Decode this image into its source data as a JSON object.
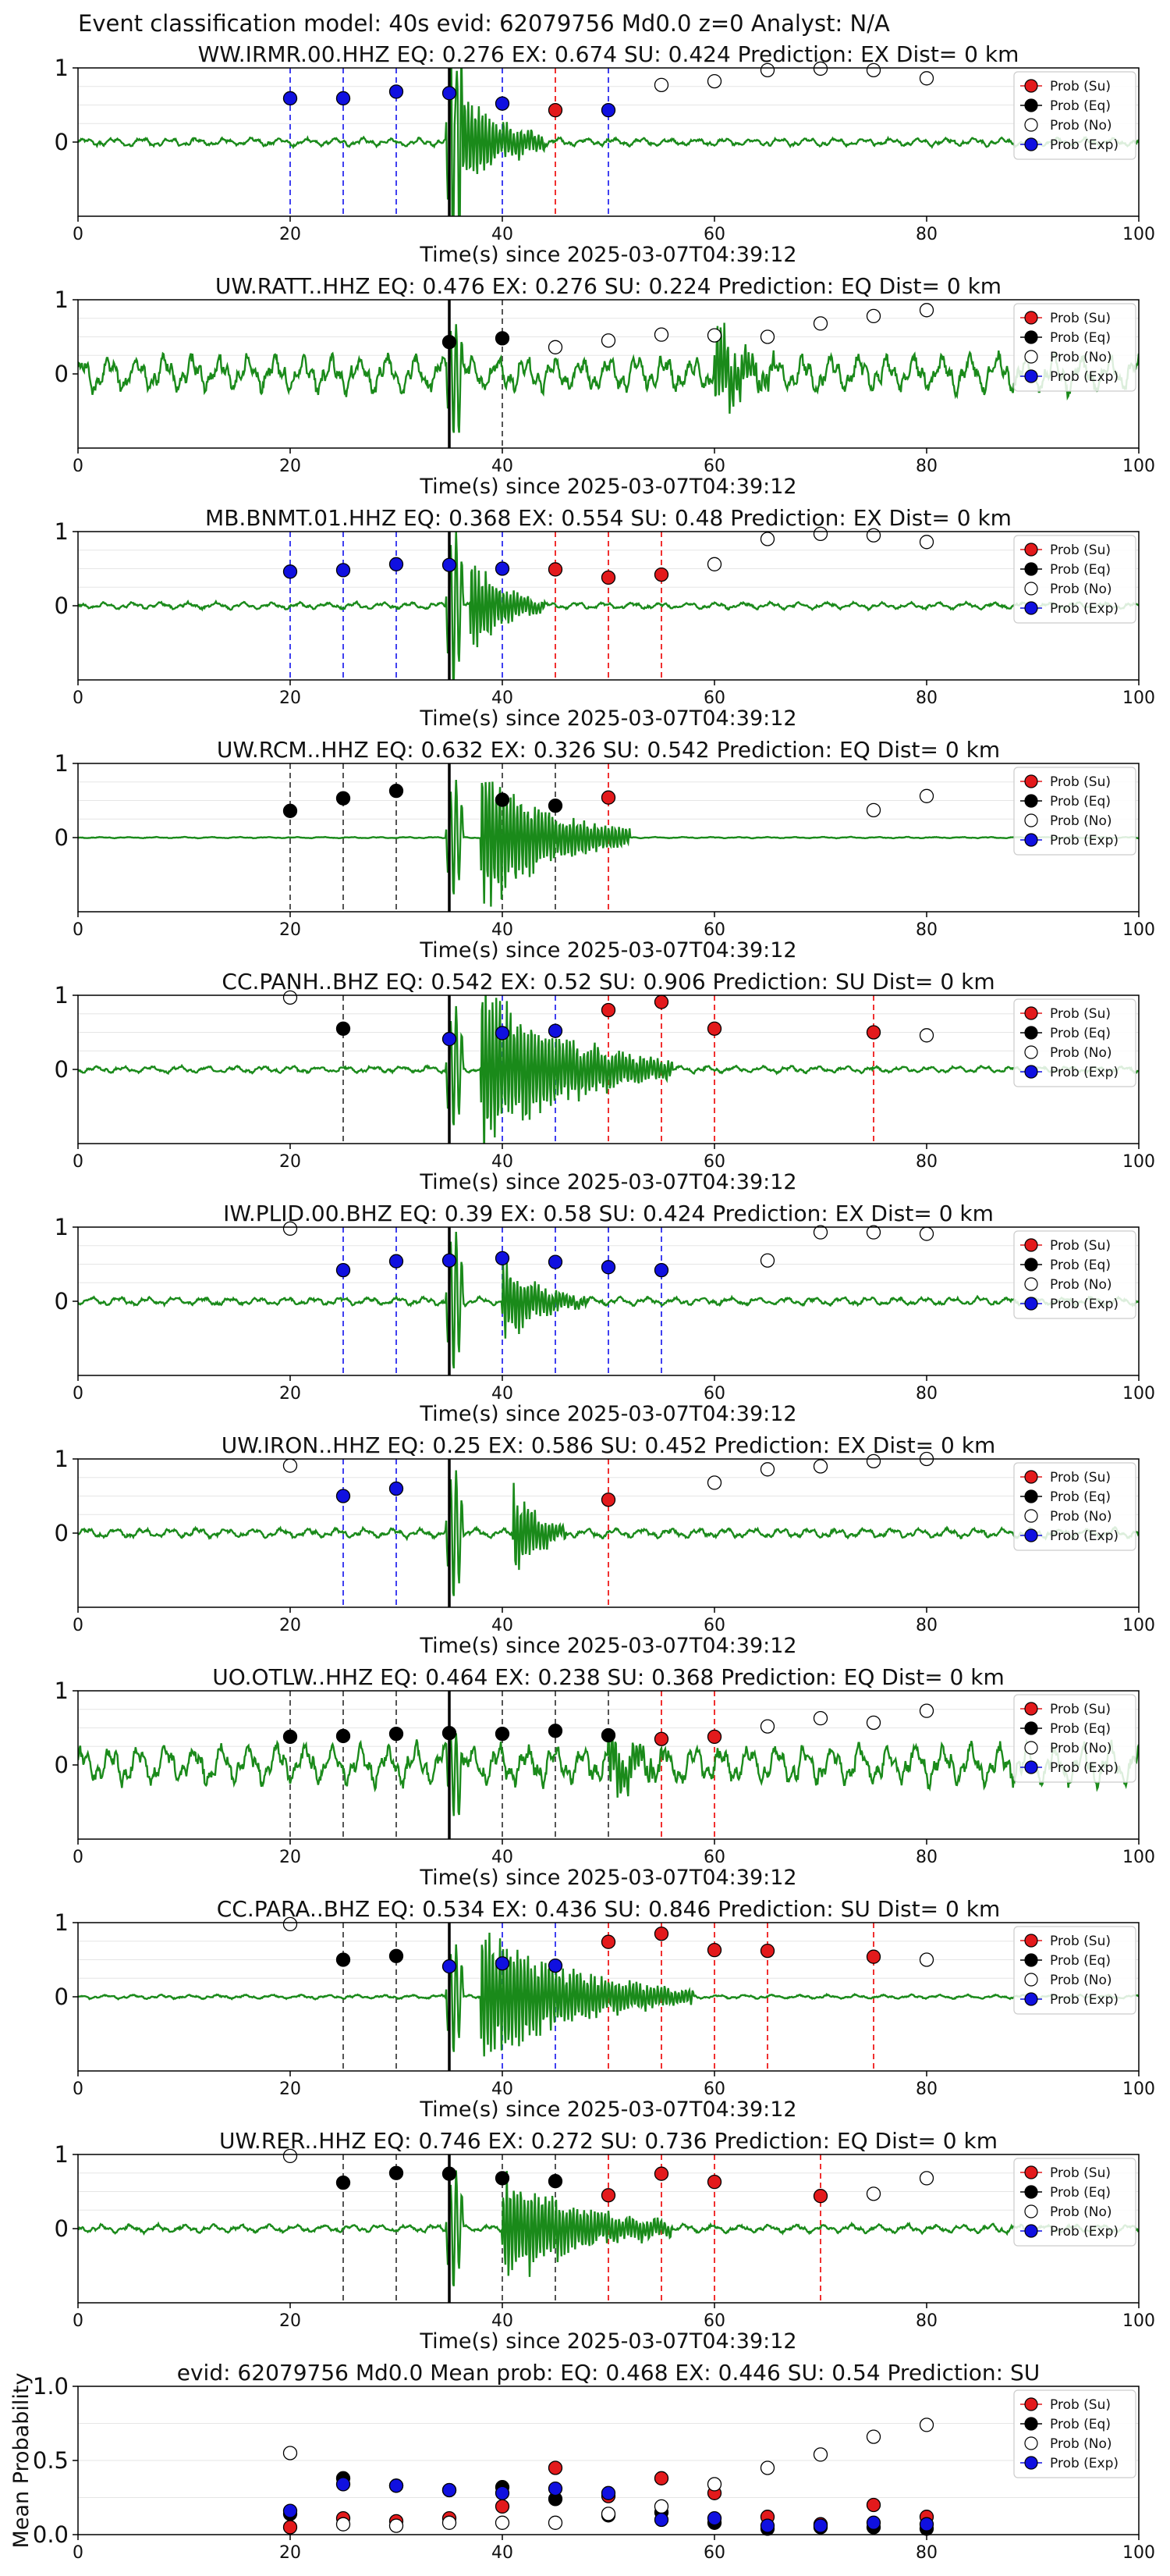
{
  "figure": {
    "suptitle": "Event classification model: 40s evid: 62079756 Md0.0 z=0 Analyst: N/A",
    "xlabel": "Time(s) since 2025-03-07T04:39:12",
    "legend": [
      "Prob (Su)",
      "Prob (Eq)",
      "Prob (No)",
      "Prob (Exp)"
    ],
    "colors": {
      "su": "#e31a1c",
      "eq": "#000000",
      "no": "#ffffff",
      "exp": "#1010e0",
      "wave": "#1a8a1a"
    }
  },
  "chart_data": [
    {
      "type": "scatter",
      "title": "WW.IRMR.00.HHZ   EQ: 0.276  EX: 0.674  SU: 0.424   Prediction: EX    Dist= 0 km",
      "xlim": [
        0,
        100
      ],
      "ylim": [
        -1,
        1
      ],
      "xticks": [
        "0",
        "20",
        "40",
        "60",
        "80",
        "100"
      ],
      "yticks": [
        "0",
        "1"
      ],
      "pick": 35,
      "amp": 1.6,
      "noise": 0.06,
      "burst": [
        35,
        44
      ],
      "burst_amp": 0.8,
      "windows": [
        20,
        25,
        30,
        35,
        40,
        45,
        50
      ],
      "series": [
        {
          "key": "exp",
          "x": [
            20,
            25,
            30,
            35,
            40,
            50
          ],
          "y": [
            0.59,
            0.59,
            0.68,
            0.66,
            0.52,
            0.43
          ]
        },
        {
          "key": "su",
          "x": [
            45
          ],
          "y": [
            0.43
          ]
        },
        {
          "key": "no",
          "x": [
            55,
            60,
            65,
            70,
            75,
            80
          ],
          "y": [
            0.77,
            0.82,
            0.97,
            0.99,
            0.97,
            0.86
          ]
        }
      ]
    },
    {
      "type": "scatter",
      "title": "UW.RATT..HHZ   EQ: 0.476  EX: 0.276  SU: 0.224   Prediction: EQ    Dist= 0 km",
      "xlim": [
        0,
        100
      ],
      "ylim": [
        -1,
        1
      ],
      "xticks": [
        "0",
        "20",
        "40",
        "60",
        "80",
        "100"
      ],
      "yticks": [
        "0",
        "1"
      ],
      "pick": 35,
      "amp": 0.9,
      "noise": 0.28,
      "burst": [
        60,
        66
      ],
      "burst_amp": 0.6,
      "windows": [
        35,
        40
      ],
      "series": [
        {
          "key": "eq",
          "x": [
            35,
            40
          ],
          "y": [
            0.43,
            0.48
          ]
        },
        {
          "key": "no",
          "x": [
            45,
            50,
            55,
            60,
            65,
            70,
            75,
            80
          ],
          "y": [
            0.36,
            0.45,
            0.53,
            0.52,
            0.5,
            0.68,
            0.78,
            0.86
          ]
        }
      ]
    },
    {
      "type": "scatter",
      "title": "MB.BNMT.01.HHZ   EQ: 0.368  EX: 0.554  SU: 0.48   Prediction: EX    Dist= 0 km",
      "xlim": [
        0,
        100
      ],
      "ylim": [
        -1,
        1
      ],
      "xticks": [
        "0",
        "20",
        "40",
        "60",
        "80",
        "100"
      ],
      "yticks": [
        "0",
        "1"
      ],
      "pick": 35,
      "amp": 1.2,
      "noise": 0.05,
      "burst": [
        37,
        44
      ],
      "burst_amp": 0.6,
      "windows": [
        20,
        25,
        30,
        35,
        40,
        45,
        50,
        55
      ],
      "series": [
        {
          "key": "exp",
          "x": [
            20,
            25,
            30,
            35,
            40
          ],
          "y": [
            0.46,
            0.48,
            0.56,
            0.55,
            0.5
          ]
        },
        {
          "key": "su",
          "x": [
            45,
            50,
            55
          ],
          "y": [
            0.49,
            0.38,
            0.42
          ]
        },
        {
          "key": "no",
          "x": [
            60,
            65,
            70,
            75,
            80
          ],
          "y": [
            0.56,
            0.9,
            0.97,
            0.95,
            0.86
          ]
        }
      ]
    },
    {
      "type": "scatter",
      "title": "UW.RCM..HHZ   EQ: 0.632  EX: 0.326  SU: 0.542   Prediction: EQ    Dist= 0 km",
      "xlim": [
        0,
        100
      ],
      "ylim": [
        -1,
        1
      ],
      "xticks": [
        "0",
        "20",
        "40",
        "60",
        "80",
        "100"
      ],
      "yticks": [
        "0",
        "1"
      ],
      "pick": 35,
      "amp": 0.9,
      "noise": 0.01,
      "burst": [
        38,
        52
      ],
      "burst_amp": 0.9,
      "windows": [
        20,
        25,
        30,
        40,
        45,
        50
      ],
      "series": [
        {
          "key": "eq",
          "x": [
            20,
            25,
            30,
            40,
            45
          ],
          "y": [
            0.36,
            0.53,
            0.63,
            0.51,
            0.43
          ]
        },
        {
          "key": "su",
          "x": [
            50
          ],
          "y": [
            0.54
          ]
        },
        {
          "key": "no",
          "x": [
            75,
            80
          ],
          "y": [
            0.37,
            0.56
          ]
        }
      ]
    },
    {
      "type": "scatter",
      "title": "CC.PANH..BHZ   EQ: 0.542  EX: 0.52  SU: 0.906   Prediction: SU    Dist= 0 km",
      "xlim": [
        0,
        100
      ],
      "ylim": [
        -1,
        1
      ],
      "xticks": [
        "0",
        "20",
        "40",
        "60",
        "80",
        "100"
      ],
      "yticks": [
        "0",
        "1"
      ],
      "pick": 35,
      "amp": 0.95,
      "noise": 0.05,
      "burst": [
        38,
        56
      ],
      "burst_amp": 1.0,
      "windows": [
        25,
        35,
        40,
        45,
        50,
        55,
        60,
        75
      ],
      "series": [
        {
          "key": "no",
          "x": [
            20,
            80
          ],
          "y": [
            0.97,
            0.46
          ]
        },
        {
          "key": "eq",
          "x": [
            25
          ],
          "y": [
            0.55
          ]
        },
        {
          "key": "exp",
          "x": [
            35,
            40,
            45
          ],
          "y": [
            0.41,
            0.49,
            0.52
          ]
        },
        {
          "key": "su",
          "x": [
            50,
            55,
            60,
            75
          ],
          "y": [
            0.8,
            0.91,
            0.55,
            0.5
          ]
        }
      ]
    },
    {
      "type": "scatter",
      "title": "IW.PLID.00.BHZ   EQ: 0.39  EX: 0.58  SU: 0.424   Prediction: EX    Dist= 0 km",
      "xlim": [
        0,
        100
      ],
      "ylim": [
        -1,
        1
      ],
      "xticks": [
        "0",
        "20",
        "40",
        "60",
        "80",
        "100"
      ],
      "yticks": [
        "0",
        "1"
      ],
      "pick": 35,
      "amp": 1.1,
      "noise": 0.06,
      "burst": [
        40,
        48
      ],
      "burst_amp": 0.5,
      "windows": [
        25,
        30,
        35,
        40,
        45,
        50,
        55
      ],
      "series": [
        {
          "key": "no",
          "x": [
            20,
            65,
            70,
            75,
            80
          ],
          "y": [
            0.98,
            0.55,
            0.93,
            0.93,
            0.91
          ]
        },
        {
          "key": "exp",
          "x": [
            25,
            30,
            35,
            40,
            45,
            50,
            55
          ],
          "y": [
            0.42,
            0.54,
            0.55,
            0.58,
            0.53,
            0.46,
            0.42
          ]
        }
      ]
    },
    {
      "type": "scatter",
      "title": "UW.IRON..HHZ   EQ: 0.25  EX: 0.586  SU: 0.452   Prediction: EX    Dist= 0 km",
      "xlim": [
        0,
        100
      ],
      "ylim": [
        -1,
        1
      ],
      "xticks": [
        "0",
        "20",
        "40",
        "60",
        "80",
        "100"
      ],
      "yticks": [
        "0",
        "1"
      ],
      "pick": 35,
      "amp": 1.0,
      "noise": 0.07,
      "burst": [
        41,
        46
      ],
      "burst_amp": 0.6,
      "windows": [
        25,
        30,
        35,
        50
      ],
      "series": [
        {
          "key": "no",
          "x": [
            20,
            60,
            65,
            70,
            75,
            80
          ],
          "y": [
            0.91,
            0.68,
            0.86,
            0.9,
            0.97,
            1.0
          ]
        },
        {
          "key": "exp",
          "x": [
            25,
            30
          ],
          "y": [
            0.5,
            0.6
          ]
        },
        {
          "key": "su",
          "x": [
            50
          ],
          "y": [
            0.45
          ]
        }
      ]
    },
    {
      "type": "scatter",
      "title": "UO.OTLW..HHZ   EQ: 0.464  EX: 0.238  SU: 0.368   Prediction: EQ    Dist= 0 km",
      "xlim": [
        0,
        100
      ],
      "ylim": [
        -1,
        1
      ],
      "xticks": [
        "0",
        "20",
        "40",
        "60",
        "80",
        "100"
      ],
      "yticks": [
        "0",
        "1"
      ],
      "pick": 35,
      "amp": 0.7,
      "noise": 0.3,
      "burst": [
        50,
        56
      ],
      "burst_amp": 0.4,
      "windows": [
        20,
        25,
        30,
        35,
        40,
        45,
        50,
        55,
        60
      ],
      "series": [
        {
          "key": "eq",
          "x": [
            20,
            25,
            30,
            35,
            40,
            45,
            50
          ],
          "y": [
            0.38,
            0.39,
            0.42,
            0.43,
            0.42,
            0.46,
            0.4
          ]
        },
        {
          "key": "su",
          "x": [
            55,
            60
          ],
          "y": [
            0.35,
            0.38
          ]
        },
        {
          "key": "no",
          "x": [
            65,
            70,
            75,
            80
          ],
          "y": [
            0.52,
            0.63,
            0.57,
            0.73
          ]
        }
      ]
    },
    {
      "type": "scatter",
      "title": "CC.PARA..BHZ   EQ: 0.534  EX: 0.436  SU: 0.846   Prediction: SU    Dist= 0 km",
      "xlim": [
        0,
        100
      ],
      "ylim": [
        -1,
        1
      ],
      "xticks": [
        "0",
        "20",
        "40",
        "60",
        "80",
        "100"
      ],
      "yticks": [
        "0",
        "1"
      ],
      "pick": 35,
      "amp": 0.85,
      "noise": 0.03,
      "burst": [
        38,
        58
      ],
      "burst_amp": 0.8,
      "windows": [
        25,
        30,
        35,
        40,
        45,
        50,
        55,
        60,
        65,
        75
      ],
      "series": [
        {
          "key": "no",
          "x": [
            20,
            80
          ],
          "y": [
            0.98,
            0.5
          ]
        },
        {
          "key": "eq",
          "x": [
            25,
            30
          ],
          "y": [
            0.5,
            0.55
          ]
        },
        {
          "key": "exp",
          "x": [
            35,
            40,
            45
          ],
          "y": [
            0.41,
            0.45,
            0.42
          ]
        },
        {
          "key": "su",
          "x": [
            50,
            55,
            60,
            65,
            75
          ],
          "y": [
            0.74,
            0.85,
            0.63,
            0.62,
            0.54
          ]
        }
      ]
    },
    {
      "type": "scatter",
      "title": "UW.RER..HHZ   EQ: 0.746  EX: 0.272  SU: 0.736   Prediction: EQ    Dist= 0 km",
      "xlim": [
        0,
        100
      ],
      "ylim": [
        -1,
        1
      ],
      "xticks": [
        "0",
        "20",
        "40",
        "60",
        "80",
        "100"
      ],
      "yticks": [
        "0",
        "1"
      ],
      "pick": 35,
      "amp": 0.9,
      "noise": 0.06,
      "burst": [
        40,
        56
      ],
      "burst_amp": 0.7,
      "windows": [
        25,
        30,
        35,
        40,
        45,
        50,
        55,
        60,
        70
      ],
      "series": [
        {
          "key": "no",
          "x": [
            20,
            75,
            80
          ],
          "y": [
            0.98,
            0.47,
            0.68
          ]
        },
        {
          "key": "eq",
          "x": [
            25,
            30,
            35,
            40,
            45
          ],
          "y": [
            0.62,
            0.75,
            0.74,
            0.68,
            0.64
          ]
        },
        {
          "key": "su",
          "x": [
            50,
            55,
            60,
            70
          ],
          "y": [
            0.45,
            0.74,
            0.63,
            0.44
          ]
        }
      ]
    },
    {
      "type": "scatter",
      "title": "evid: 62079756  Md0.0   Mean prob:   EQ: 0.468  EX: 0.446  SU: 0.54   Prediction: SU",
      "ylabel": "Mean Probability",
      "xlim": [
        0,
        100
      ],
      "ylim": [
        0,
        1
      ],
      "xticks": [
        "0",
        "20",
        "40",
        "60",
        "80",
        "100"
      ],
      "yticks": [
        "0.0",
        "0.5",
        "1.0"
      ],
      "series": [
        {
          "key": "su",
          "x": [
            20,
            25,
            30,
            35,
            40,
            45,
            50,
            55,
            60,
            65,
            70,
            75,
            80
          ],
          "y": [
            0.05,
            0.11,
            0.09,
            0.11,
            0.19,
            0.45,
            0.26,
            0.38,
            0.28,
            0.12,
            0.07,
            0.2,
            0.12
          ]
        },
        {
          "key": "eq",
          "x": [
            20,
            25,
            30,
            35,
            40,
            45,
            50,
            55,
            60,
            65,
            70,
            75,
            80
          ],
          "y": [
            0.14,
            0.38,
            0.33,
            0.3,
            0.32,
            0.24,
            0.13,
            0.15,
            0.08,
            0.04,
            0.05,
            0.05,
            0.04
          ]
        },
        {
          "key": "no",
          "x": [
            20,
            25,
            30,
            35,
            40,
            45,
            50,
            55,
            60,
            65,
            70,
            75,
            80
          ],
          "y": [
            0.55,
            0.07,
            0.06,
            0.08,
            0.08,
            0.08,
            0.14,
            0.19,
            0.34,
            0.45,
            0.54,
            0.66,
            0.74
          ]
        },
        {
          "key": "exp",
          "x": [
            20,
            25,
            30,
            35,
            40,
            45,
            50,
            55,
            60,
            65,
            70,
            75,
            80
          ],
          "y": [
            0.16,
            0.34,
            0.33,
            0.3,
            0.28,
            0.31,
            0.28,
            0.1,
            0.11,
            0.06,
            0.06,
            0.08,
            0.07
          ]
        }
      ]
    }
  ]
}
